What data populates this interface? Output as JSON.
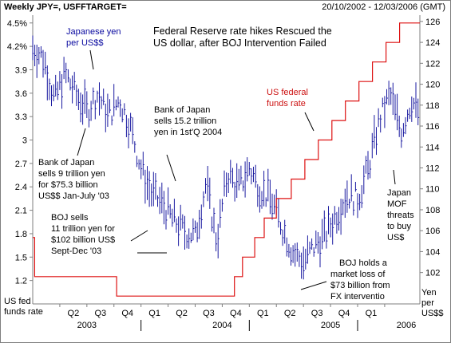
{
  "header": {
    "left": "Weekly JPY=, USFFTARGET=",
    "right": "20/10/2002 - 12/03/2006 (GMT)"
  },
  "chart_data": {
    "type": "line",
    "title_lines": [
      "Federal Reserve rate hikes Rescued the",
      "US dollar, after BOJ Intervention Failed"
    ],
    "x_quarter_labels": [
      "Q2",
      "Q3",
      "Q4",
      "Q1",
      "Q2",
      "Q3",
      "Q4",
      "Q1",
      "Q2",
      "Q3",
      "Q4",
      "Q1"
    ],
    "x_year_labels": [
      "2003",
      "2004",
      "2005",
      "2006"
    ],
    "left_axis": {
      "name": "US fed funds rate",
      "ticks": [
        "4.5%",
        "4.2%",
        "3.9",
        "3.6",
        "3.3",
        "3",
        "2.7",
        "2.4",
        "2.1",
        "1.8",
        "1.5",
        "1.2"
      ],
      "tick_values": [
        4.5,
        4.2,
        3.9,
        3.6,
        3.3,
        3.0,
        2.7,
        2.4,
        2.1,
        1.8,
        1.5,
        1.2
      ],
      "range": [
        0.9,
        4.6
      ]
    },
    "right_axis": {
      "name": "Yen per US$$",
      "ticks": [
        "126",
        "124",
        "122",
        "120",
        "118",
        "116",
        "114",
        "112",
        "110",
        "108",
        "106",
        "104",
        "102"
      ],
      "tick_values": [
        126,
        124,
        122,
        120,
        118,
        116,
        114,
        112,
        110,
        108,
        106,
        104,
        102
      ],
      "range": [
        99.0,
        126.6
      ]
    },
    "axis_names": {
      "left_line1": "US fed",
      "left_line2": "funds rate",
      "right_line1": "Yen",
      "right_line2": "per",
      "right_line3": "US$$"
    },
    "series": [
      {
        "name": "US federal funds rate",
        "axis": "left",
        "color": "#dd1111",
        "points": [
          [
            0.0,
            1.75
          ],
          [
            0.07,
            1.75
          ],
          [
            0.07,
            1.25
          ],
          [
            3.1,
            1.25
          ],
          [
            3.1,
            1.0
          ],
          [
            7.45,
            1.0
          ],
          [
            7.45,
            1.25
          ],
          [
            7.75,
            1.25
          ],
          [
            7.75,
            1.5
          ],
          [
            8.2,
            1.5
          ],
          [
            8.2,
            1.75
          ],
          [
            8.55,
            1.75
          ],
          [
            8.55,
            2.0
          ],
          [
            9.0,
            2.0
          ],
          [
            9.0,
            2.25
          ],
          [
            9.55,
            2.25
          ],
          [
            9.55,
            2.5
          ],
          [
            10.05,
            2.5
          ],
          [
            10.05,
            2.75
          ],
          [
            10.55,
            2.75
          ],
          [
            10.55,
            3.0
          ],
          [
            11.05,
            3.0
          ],
          [
            11.05,
            3.25
          ],
          [
            11.55,
            3.25
          ],
          [
            11.55,
            3.5
          ],
          [
            12.05,
            3.5
          ],
          [
            12.05,
            3.75
          ],
          [
            12.55,
            3.75
          ],
          [
            12.55,
            4.0
          ],
          [
            13.05,
            4.0
          ],
          [
            13.05,
            4.25
          ],
          [
            13.55,
            4.25
          ],
          [
            13.55,
            4.5
          ],
          [
            14.3,
            4.5
          ]
        ]
      },
      {
        "name": "Japanese yen per US$$",
        "axis": "right",
        "color": "#1a1aa0",
        "points": [
          [
            0.0,
            123.5
          ],
          [
            0.4,
            122.5
          ],
          [
            0.8,
            118.5
          ],
          [
            1.2,
            121.0
          ],
          [
            1.6,
            119.0
          ],
          [
            2.0,
            117.5
          ],
          [
            2.4,
            119.0
          ],
          [
            2.8,
            117.0
          ],
          [
            3.2,
            118.5
          ],
          [
            3.6,
            116.0
          ],
          [
            4.0,
            112.0
          ],
          [
            4.4,
            109.5
          ],
          [
            4.8,
            108.5
          ],
          [
            5.2,
            107.0
          ],
          [
            5.6,
            106.0
          ],
          [
            6.0,
            105.5
          ],
          [
            6.4,
            110.5
          ],
          [
            6.8,
            105.0
          ],
          [
            7.2,
            111.5
          ],
          [
            7.6,
            110.0
          ],
          [
            8.0,
            112.0
          ],
          [
            8.4,
            110.0
          ],
          [
            8.8,
            109.0
          ],
          [
            9.2,
            106.5
          ],
          [
            9.6,
            104.0
          ],
          [
            10.0,
            103.0
          ],
          [
            10.4,
            104.5
          ],
          [
            10.8,
            105.5
          ],
          [
            11.2,
            107.5
          ],
          [
            11.6,
            109.5
          ],
          [
            12.0,
            109.0
          ],
          [
            12.4,
            112.0
          ],
          [
            12.8,
            116.5
          ],
          [
            13.2,
            119.0
          ],
          [
            13.6,
            115.5
          ],
          [
            14.0,
            118.5
          ],
          [
            14.3,
            117.0
          ]
        ]
      }
    ],
    "annotations": [
      {
        "id": "yen-label",
        "lines": [
          "Japanese yen",
          "per US$$"
        ],
        "color": "#0a0aa0"
      },
      {
        "id": "fed-label",
        "lines": [
          "US federal",
          "funds rate"
        ],
        "color": "#cc1111"
      },
      {
        "id": "boj-9t",
        "lines": [
          "Bank of Japan",
          "sells 9 trillion yen",
          "for $75.3 billion",
          "US$$ Jan-July '03"
        ],
        "color": "#000000"
      },
      {
        "id": "boj-152t",
        "lines": [
          "Bank of Japan",
          "sells 15.2 trillion",
          "yen in 1st'Q 2004"
        ],
        "color": "#000000"
      },
      {
        "id": "boj-11t",
        "lines": [
          "BOJ sells",
          "11 trillion yen for",
          "$102 billion US$",
          "Sept-Dec '03"
        ],
        "color": "#000000"
      },
      {
        "id": "boj-loss",
        "lines": [
          "BOJ holds a",
          "market loss of",
          "$73 billion from",
          "FX interventio"
        ],
        "color": "#000000"
      },
      {
        "id": "japan-mof",
        "lines": [
          "Japan",
          "MOF",
          "threats",
          "to buy",
          "US$"
        ],
        "color": "#000000"
      }
    ]
  }
}
